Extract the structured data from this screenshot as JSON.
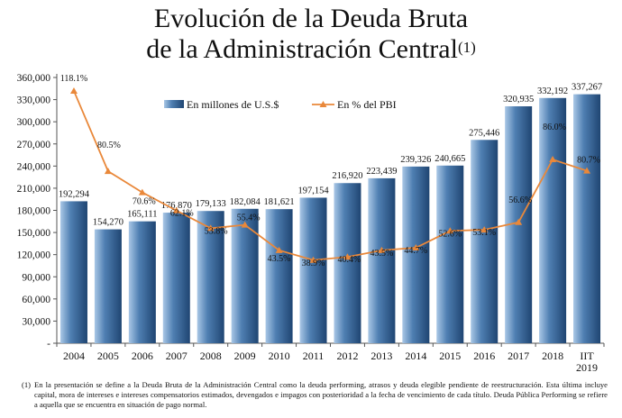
{
  "title": {
    "line1": "Evolución de la Deuda Bruta",
    "line2": "de la Administración Central",
    "note_mark": "(1)"
  },
  "colors": {
    "bar_light": "#a9c7e6",
    "bar_mid": "#4f7fb2",
    "bar_dark": "#1f4572",
    "line": "#e9883a",
    "axis": "#555555"
  },
  "chart_data": {
    "type": "bar+line",
    "categories": [
      "2004",
      "2005",
      "2006",
      "2007",
      "2008",
      "2009",
      "2010",
      "2011",
      "2012",
      "2013",
      "2014",
      "2015",
      "2016",
      "2017",
      "2018",
      "IIT\n2019"
    ],
    "series": [
      {
        "name": "En millones de U.S.$",
        "type": "bar",
        "values": [
          192294,
          154270,
          165111,
          176870,
          179133,
          182084,
          181621,
          197154,
          216920,
          223439,
          239326,
          240665,
          275446,
          320935,
          332192,
          337267
        ],
        "labels": [
          "192,294",
          "154,270",
          "165,111",
          "176,870",
          "179,133",
          "182,084",
          "181,621",
          "197,154",
          "216,920",
          "223,439",
          "239,326",
          "240,665",
          "275,446",
          "320,935",
          "332,192",
          "337,267"
        ]
      },
      {
        "name": "En % del PBI",
        "type": "line",
        "values": [
          118.1,
          80.5,
          70.6,
          62.1,
          53.8,
          55.4,
          43.5,
          38.9,
          40.4,
          43.5,
          44.7,
          52.6,
          53.1,
          56.6,
          86.0,
          80.7
        ],
        "labels": [
          "118.1%",
          "80.5%",
          "70.6%",
          "62.1%",
          "53.8%",
          "55.4%",
          "43.5%",
          "38.9%",
          "40.4%",
          "43.5%",
          "44.7%",
          "52.6%",
          "53.1%",
          "56.6%",
          "86.0%",
          "80.7%"
        ]
      }
    ],
    "yaxis": {
      "ticks": [
        0,
        30000,
        60000,
        90000,
        120000,
        150000,
        180000,
        210000,
        240000,
        270000,
        300000,
        330000,
        360000
      ],
      "tick_labels": [
        "-",
        "30,000",
        "60,000",
        "90,000",
        "120,000",
        "150,000",
        "180,000",
        "210,000",
        "240,000",
        "270,000",
        "300,000",
        "330,000",
        "360,000"
      ],
      "ylim": [
        0,
        360000
      ]
    },
    "y2axis": {
      "ylim": [
        0,
        124.4
      ],
      "visible": false
    },
    "legend": {
      "bar_label": "En millones de U.S.$",
      "line_label": "En % del PBI",
      "placement": "top-center"
    },
    "grid": false
  },
  "footnote": {
    "mark": "(1)",
    "text": "En la presentación se define a la Deuda Bruta de la Administración Central como la deuda performing, atrasos y deuda elegible pendiente de reestructuración. Esta última incluye capital, mora de intereses e intereses compensatorios estimados, devengados e impagos con posterioridad a la fecha de vencimiento de cada título. Deuda Pública Performing se refiere a aquella que se encuentra en situación de pago normal."
  }
}
